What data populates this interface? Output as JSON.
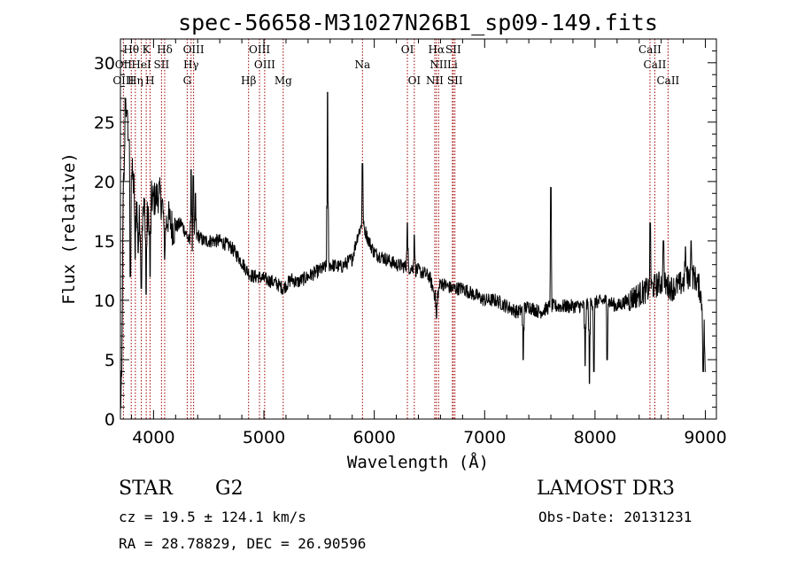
{
  "chart_data": {
    "type": "line",
    "title": "spec-56658-M31027N26B1_sp09-149.fits",
    "xlabel": "Wavelength (Å)",
    "ylabel": "Flux (relative)",
    "xlim": [
      3700,
      9100
    ],
    "ylim": [
      0,
      32
    ],
    "xticks": [
      4000,
      5000,
      6000,
      7000,
      8000,
      9000
    ],
    "yticks": [
      0,
      5,
      10,
      15,
      20,
      25,
      30
    ],
    "xtick_labels": [
      "4000",
      "5000",
      "6000",
      "7000",
      "8000",
      "9000"
    ],
    "ytick_labels": [
      "0",
      "5",
      "10",
      "15",
      "20",
      "25",
      "30"
    ],
    "line_color": "#000000",
    "marker_color": "#a00000",
    "spectrum_anchors": [
      [
        3700,
        1.0
      ],
      [
        3712,
        3.0
      ],
      [
        3725,
        19.0
      ],
      [
        3740,
        22.0
      ],
      [
        3760,
        25.0
      ],
      [
        3780,
        22.5
      ],
      [
        3800,
        21.0
      ],
      [
        3830,
        19.0
      ],
      [
        3860,
        17.0
      ],
      [
        3890,
        16.0
      ],
      [
        3920,
        18.0
      ],
      [
        3950,
        16.5
      ],
      [
        3980,
        18.5
      ],
      [
        4010,
        18.5
      ],
      [
        4050,
        19.0
      ],
      [
        4080,
        18.0
      ],
      [
        4101,
        16.0
      ],
      [
        4130,
        17.0
      ],
      [
        4180,
        16.0
      ],
      [
        4250,
        16.5
      ],
      [
        4300,
        15.5
      ],
      [
        4340,
        14.5
      ],
      [
        4400,
        15.5
      ],
      [
        4450,
        15.0
      ],
      [
        4500,
        15.0
      ],
      [
        4600,
        15.0
      ],
      [
        4700,
        14.5
      ],
      [
        4780,
        13.5
      ],
      [
        4861,
        12.3
      ],
      [
        4900,
        12.0
      ],
      [
        4950,
        12.0
      ],
      [
        5000,
        11.8
      ],
      [
        5100,
        11.5
      ],
      [
        5175,
        11.0
      ],
      [
        5250,
        11.8
      ],
      [
        5300,
        11.5
      ],
      [
        5400,
        12.0
      ],
      [
        5500,
        12.5
      ],
      [
        5600,
        13.0
      ],
      [
        5700,
        12.8
      ],
      [
        5800,
        13.5
      ],
      [
        5850,
        15.5
      ],
      [
        5893,
        16.5
      ],
      [
        5950,
        15.0
      ],
      [
        6000,
        14.0
      ],
      [
        6100,
        13.5
      ],
      [
        6200,
        13.0
      ],
      [
        6300,
        12.8
      ],
      [
        6400,
        12.5
      ],
      [
        6500,
        12.0
      ],
      [
        6563,
        10.0
      ],
      [
        6600,
        11.5
      ],
      [
        6700,
        11.0
      ],
      [
        6800,
        11.0
      ],
      [
        6900,
        10.5
      ],
      [
        7000,
        10.0
      ],
      [
        7100,
        10.0
      ],
      [
        7200,
        9.5
      ],
      [
        7300,
        9.0
      ],
      [
        7400,
        9.5
      ],
      [
        7500,
        9.0
      ],
      [
        7600,
        9.5
      ],
      [
        7700,
        9.5
      ],
      [
        7800,
        9.5
      ],
      [
        7900,
        9.5
      ],
      [
        8000,
        9.8
      ],
      [
        8100,
        10.0
      ],
      [
        8200,
        9.5
      ],
      [
        8300,
        10.0
      ],
      [
        8400,
        10.5
      ],
      [
        8500,
        11.0
      ],
      [
        8600,
        11.5
      ],
      [
        8700,
        11.0
      ],
      [
        8800,
        11.5
      ],
      [
        8850,
        12.0
      ],
      [
        8900,
        12.0
      ],
      [
        8950,
        11.0
      ],
      [
        8990,
        8.0
      ],
      [
        9000,
        2.0
      ]
    ],
    "spectrum_features": [
      [
        3745,
        27.0
      ],
      [
        3760,
        26.0
      ],
      [
        3775,
        23.5
      ],
      [
        3790,
        12.0
      ],
      [
        3833,
        13.5
      ],
      [
        3860,
        14.0
      ],
      [
        3889,
        11.0
      ],
      [
        3933,
        10.5
      ],
      [
        3968,
        12.0
      ],
      [
        4101,
        13.5
      ],
      [
        4340,
        21.0
      ],
      [
        4360,
        20.5
      ],
      [
        4380,
        19.0
      ],
      [
        5577,
        27.5
      ],
      [
        5893,
        21.5
      ],
      [
        6300,
        16.5
      ],
      [
        6363,
        15.5
      ],
      [
        6563,
        8.5
      ],
      [
        7350,
        5.0
      ],
      [
        7600,
        19.5
      ],
      [
        7910,
        4.5
      ],
      [
        7950,
        3.0
      ],
      [
        7990,
        4.0
      ],
      [
        8110,
        5.0
      ],
      [
        8500,
        16.5
      ],
      [
        8620,
        15.0
      ],
      [
        8820,
        14.5
      ],
      [
        8870,
        15.0
      ],
      [
        8980,
        4.0
      ]
    ],
    "spectral_lines": [
      {
        "name": "Hθ",
        "wavelength": 3798,
        "row": 0
      },
      {
        "name": "K",
        "wavelength": 3934,
        "row": 0
      },
      {
        "name": "Hδ",
        "wavelength": 4101,
        "row": 0
      },
      {
        "name": "OIII",
        "wavelength": 4363,
        "row": 0
      },
      {
        "name": "OIII",
        "wavelength": 4960,
        "row": 0
      },
      {
        "name": "OI",
        "wavelength": 6300,
        "row": 0
      },
      {
        "name": "Hα",
        "wavelength": 6563,
        "row": 0
      },
      {
        "name": "SII",
        "wavelength": 6716,
        "row": 0
      },
      {
        "name": "CaII",
        "wavelength": 8498,
        "row": 0
      },
      {
        "name": "OII",
        "wavelength": 3727,
        "row": 1
      },
      {
        "name": "HeI",
        "wavelength": 3889,
        "row": 1
      },
      {
        "name": "SII",
        "wavelength": 4072,
        "row": 1
      },
      {
        "name": "Hγ",
        "wavelength": 4340,
        "row": 1
      },
      {
        "name": "OIII",
        "wavelength": 5007,
        "row": 1
      },
      {
        "name": "Na",
        "wavelength": 5893,
        "row": 1
      },
      {
        "name": "NII",
        "wavelength": 6583,
        "row": 1
      },
      {
        "name": "Li",
        "wavelength": 6708,
        "row": 1
      },
      {
        "name": "CaII",
        "wavelength": 8542,
        "row": 1
      },
      {
        "name": "OIII",
        "wavelength": 3727,
        "row": 2
      },
      {
        "name": "Hη",
        "wavelength": 3835,
        "row": 2
      },
      {
        "name": "H",
        "wavelength": 3968,
        "row": 2
      },
      {
        "name": "G",
        "wavelength": 4305,
        "row": 2
      },
      {
        "name": "Hβ",
        "wavelength": 4861,
        "row": 2
      },
      {
        "name": "Mg",
        "wavelength": 5175,
        "row": 2
      },
      {
        "name": "OI",
        "wavelength": 6363,
        "row": 2
      },
      {
        "name": "NII",
        "wavelength": 6548,
        "row": 2
      },
      {
        "name": "SII",
        "wavelength": 6731,
        "row": 2
      },
      {
        "name": "CaII",
        "wavelength": 8662,
        "row": 2
      }
    ]
  },
  "info": {
    "class_label": "STAR",
    "subclass_label": "G2",
    "survey_label": "LAMOST DR3",
    "cz_text": "cz = 19.5 ± 124.1 km/s",
    "obs_date_text": "Obs-Date: 20131231",
    "radec_text": "RA =  28.78829, DEC =  26.90596"
  }
}
